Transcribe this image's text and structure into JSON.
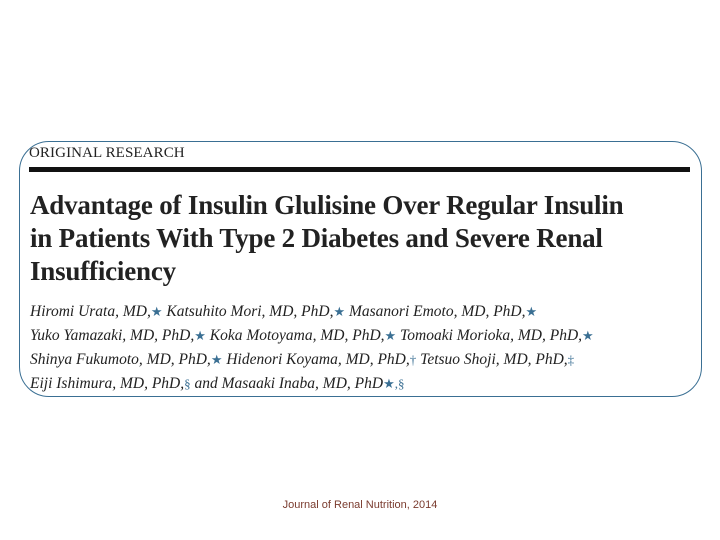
{
  "article": {
    "section_label": "ORIGINAL RESEARCH",
    "title_lines": [
      "Advantage of Insulin Glulisine Over Regular Insulin",
      "in Patients With Type 2 Diabetes and Severe Renal",
      "Insufficiency"
    ],
    "author_lines": [
      [
        {
          "name": "Hiromi Urata, MD,",
          "mark": "★"
        },
        {
          "name": " Katsuhito Mori, MD, PhD,",
          "mark": "★"
        },
        {
          "name": " Masanori Emoto, MD, PhD,",
          "mark": "★"
        }
      ],
      [
        {
          "name": "Yuko Yamazaki, MD, PhD,",
          "mark": "★"
        },
        {
          "name": " Koka Motoyama, MD, PhD,",
          "mark": "★"
        },
        {
          "name": " Tomoaki Morioka, MD, PhD,",
          "mark": "★"
        }
      ],
      [
        {
          "name": "Shinya Fukumoto, MD, PhD,",
          "mark": "★"
        },
        {
          "name": " Hidenori Koyama, MD, PhD,",
          "mark": "†"
        },
        {
          "name": " Tetsuo Shoji, MD, PhD,",
          "mark": "‡"
        }
      ],
      [
        {
          "name": "Eiji Ishimura, MD, PhD,",
          "mark": "§"
        },
        {
          "name": " and Masaaki Inaba, MD, PhD",
          "mark": "★,§"
        }
      ]
    ]
  },
  "footer": {
    "citation": "Journal of Renal Nutrition, 2014"
  },
  "colors": {
    "frame_border": "#3a6f93",
    "affiliation_mark": "#3a6f93",
    "footer_text": "#7a3b2e"
  }
}
